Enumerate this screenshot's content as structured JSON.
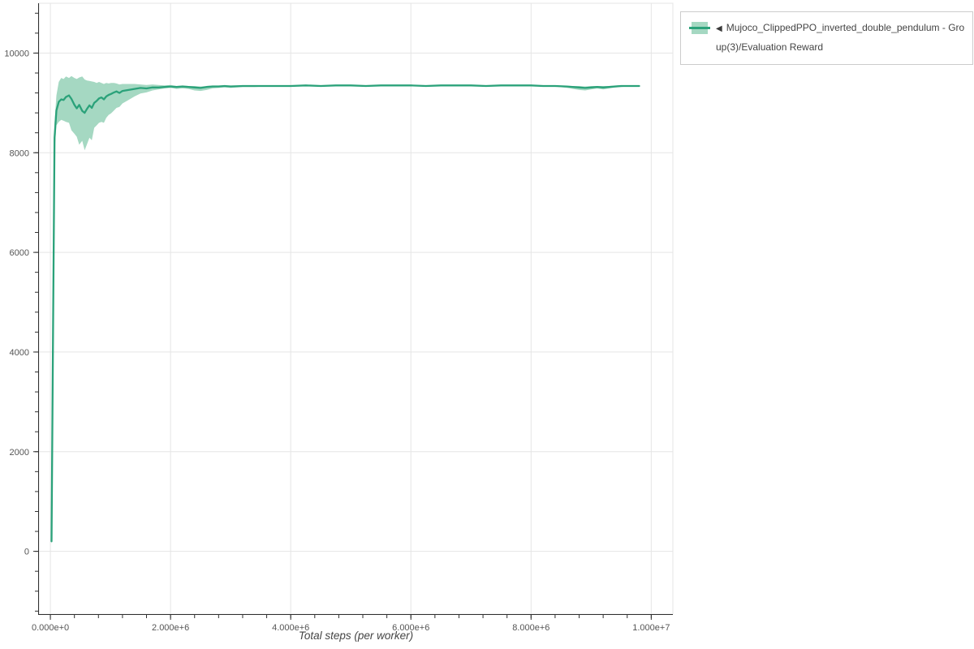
{
  "page": {
    "background": "#ffffff"
  },
  "legend": {
    "position": "top-right",
    "border_color": "#cccccc",
    "items": [
      {
        "collapse_icon": "◀",
        "label_line1": "Mujoco_ClippedPPO_inverted_double_pendulum - Gro",
        "label_line2": "up(3)/Evaluation Reward",
        "swatch": {
          "band_color": "#a5d8c2",
          "line_color": "#2ba27a"
        }
      }
    ]
  },
  "chart_data": {
    "type": "line",
    "title": "",
    "xlabel": "Total steps (per worker)",
    "ylabel": "",
    "grid": true,
    "legend_position": "top-right-outside",
    "xlim": [
      -190000,
      10360000
    ],
    "ylim": [
      -1260,
      11000
    ],
    "x_minor_step": 400000,
    "y_minor_step": 400,
    "grid_color": "#e5e5e5",
    "axis_color": "#2f2f2f",
    "tick_label_color": "#555555",
    "axis_label_color": "#444444",
    "x_ticks": {
      "values": [
        0,
        2000000,
        4000000,
        6000000,
        8000000,
        10000000
      ],
      "labels": [
        "0.000e+0",
        "2.000e+6",
        "4.000e+6",
        "6.000e+6",
        "8.000e+6",
        "1.000e+7"
      ]
    },
    "y_ticks": {
      "values": [
        0,
        2000,
        4000,
        6000,
        8000,
        10000
      ],
      "labels": [
        "0",
        "2000",
        "4000",
        "6000",
        "8000",
        "10000"
      ]
    },
    "series": [
      {
        "name": "Mujoco_ClippedPPO_inverted_double_pendulum - Group(3)/Evaluation Reward",
        "color": "#2ba27a",
        "band_color": "#a5d8c2",
        "x": [
          20000,
          45000,
          70000,
          100000,
          140000,
          180000,
          220000,
          260000,
          310000,
          350000,
          400000,
          440000,
          480000,
          530000,
          570000,
          610000,
          650000,
          690000,
          730000,
          770000,
          810000,
          850000,
          890000,
          930000,
          970000,
          1010000,
          1060000,
          1100000,
          1150000,
          1200000,
          1300000,
          1400000,
          1500000,
          1600000,
          1700000,
          1800000,
          1900000,
          2000000,
          2100000,
          2200000,
          2300000,
          2400000,
          2500000,
          2600000,
          2700000,
          2800000,
          2900000,
          3000000,
          3200000,
          3400000,
          3600000,
          3800000,
          4000000,
          4250000,
          4500000,
          4750000,
          5000000,
          5250000,
          5500000,
          5750000,
          6000000,
          6250000,
          6500000,
          6750000,
          7000000,
          7250000,
          7500000,
          7750000,
          8000000,
          8200000,
          8400000,
          8600000,
          8800000,
          8900000,
          9000000,
          9100000,
          9200000,
          9300000,
          9400000,
          9500000,
          9600000,
          9700000,
          9800000
        ],
        "mean": [
          200,
          4500,
          8300,
          8850,
          9020,
          9070,
          9060,
          9120,
          9150,
          9080,
          8960,
          8890,
          8960,
          8840,
          8800,
          8880,
          8950,
          8900,
          9000,
          9040,
          9090,
          9110,
          9070,
          9130,
          9160,
          9180,
          9210,
          9230,
          9200,
          9240,
          9260,
          9280,
          9300,
          9290,
          9310,
          9310,
          9320,
          9330,
          9320,
          9330,
          9320,
          9310,
          9300,
          9320,
          9330,
          9330,
          9340,
          9330,
          9340,
          9340,
          9340,
          9340,
          9340,
          9350,
          9340,
          9350,
          9350,
          9340,
          9350,
          9350,
          9350,
          9340,
          9350,
          9350,
          9350,
          9340,
          9350,
          9350,
          9350,
          9340,
          9340,
          9330,
          9310,
          9300,
          9310,
          9320,
          9310,
          9320,
          9330,
          9340,
          9340,
          9340,
          9340
        ],
        "lower": [
          190,
          4300,
          8000,
          8550,
          8620,
          8660,
          8640,
          8620,
          8600,
          8450,
          8380,
          8320,
          8160,
          8240,
          8050,
          8170,
          8300,
          8250,
          8500,
          8550,
          8600,
          8620,
          8600,
          8700,
          8760,
          8790,
          8850,
          8900,
          8920,
          8990,
          9060,
          9130,
          9190,
          9210,
          9250,
          9270,
          9290,
          9300,
          9280,
          9290,
          9280,
          9250,
          9240,
          9260,
          9290,
          9300,
          9310,
          9300,
          9320,
          9320,
          9330,
          9330,
          9330,
          9340,
          9330,
          9340,
          9340,
          9330,
          9340,
          9340,
          9340,
          9330,
          9340,
          9340,
          9340,
          9330,
          9340,
          9340,
          9340,
          9330,
          9330,
          9300,
          9260,
          9250,
          9270,
          9290,
          9270,
          9290,
          9310,
          9320,
          9330,
          9330,
          9330
        ],
        "upper": [
          210,
          4700,
          8600,
          9150,
          9420,
          9500,
          9480,
          9530,
          9500,
          9540,
          9500,
          9480,
          9510,
          9530,
          9470,
          9450,
          9440,
          9430,
          9420,
          9400,
          9420,
          9400,
          9380,
          9400,
          9390,
          9400,
          9400,
          9390,
          9370,
          9380,
          9380,
          9380,
          9370,
          9360,
          9370,
          9360,
          9350,
          9360,
          9340,
          9350,
          9340,
          9340,
          9330,
          9340,
          9350,
          9350,
          9350,
          9350,
          9350,
          9350,
          9350,
          9350,
          9350,
          9360,
          9350,
          9360,
          9360,
          9350,
          9360,
          9360,
          9360,
          9350,
          9360,
          9360,
          9360,
          9350,
          9360,
          9360,
          9360,
          9350,
          9350,
          9340,
          9340,
          9330,
          9340,
          9340,
          9340,
          9340,
          9350,
          9350,
          9350,
          9350,
          9350
        ]
      }
    ]
  }
}
